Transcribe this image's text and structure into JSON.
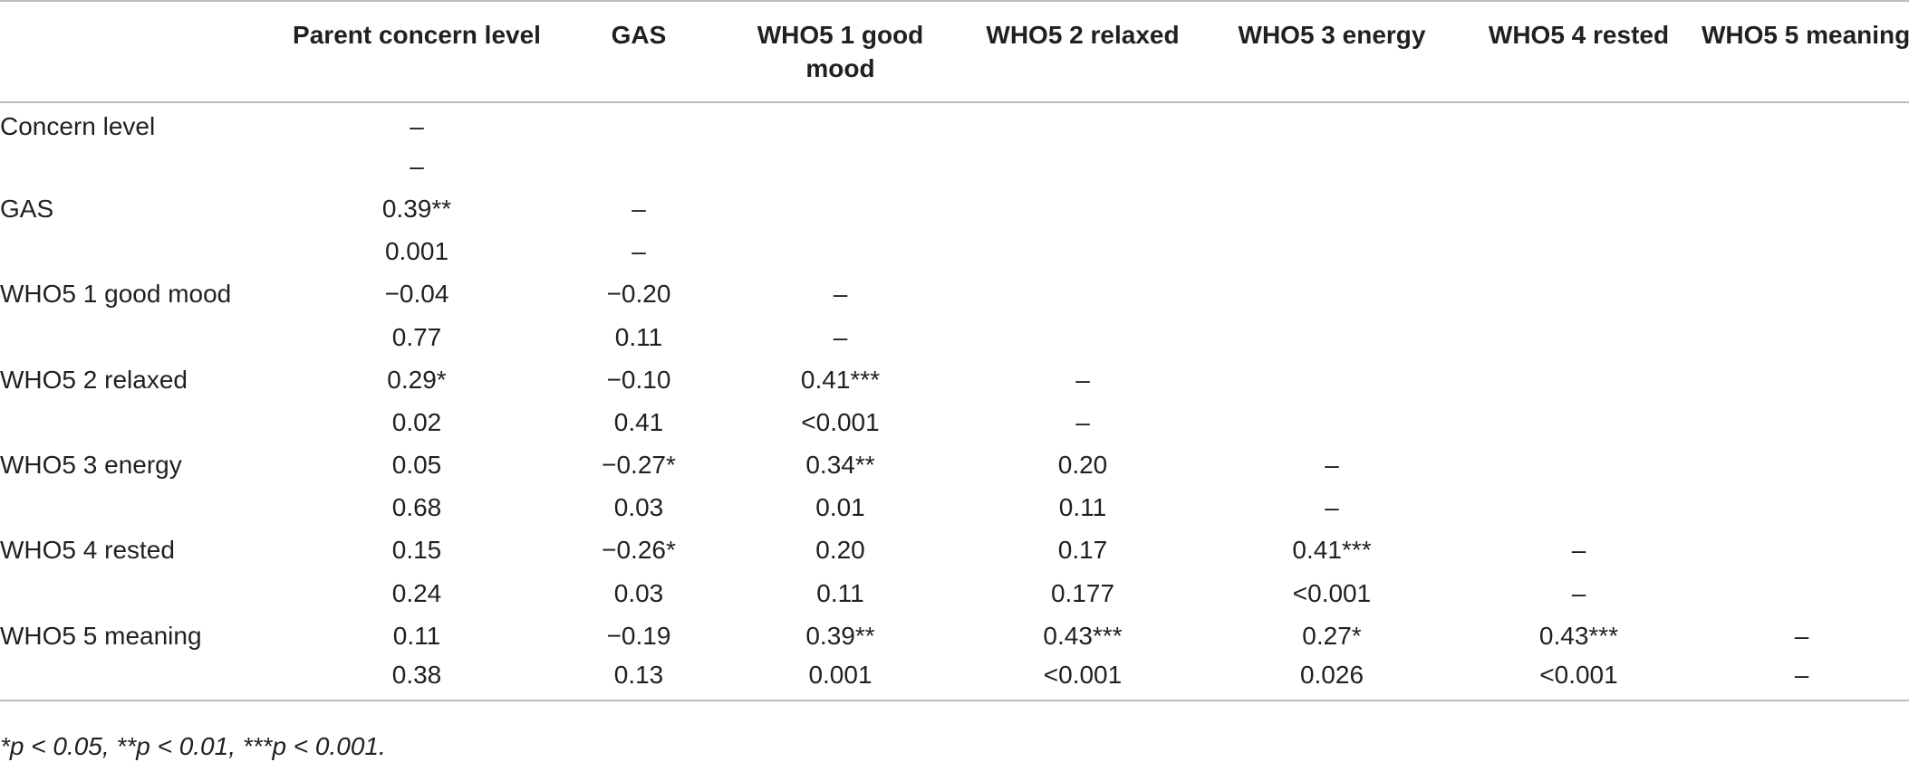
{
  "table": {
    "headers": [
      "",
      "Parent concern level",
      "GAS",
      "WHO5 1 good mood",
      "WHO5 2 relaxed",
      "WHO5 3 energy",
      "WHO5 4 rested",
      "WHO5 5 meaning"
    ],
    "rows": [
      [
        "Concern level",
        "–",
        "",
        "",
        "",
        "",
        "",
        ""
      ],
      [
        "",
        "–",
        "",
        "",
        "",
        "",
        "",
        ""
      ],
      [
        "GAS",
        "0.39**",
        "–",
        "",
        "",
        "",
        "",
        ""
      ],
      [
        "",
        "0.001",
        "–",
        "",
        "",
        "",
        "",
        ""
      ],
      [
        "WHO5 1 good mood",
        "−0.04",
        "−0.20",
        "–",
        "",
        "",
        "",
        ""
      ],
      [
        "",
        "0.77",
        "0.11",
        "–",
        "",
        "",
        "",
        ""
      ],
      [
        "WHO5 2 relaxed",
        "0.29*",
        "−0.10",
        "0.41***",
        "–",
        "",
        "",
        ""
      ],
      [
        "",
        "0.02",
        "0.41",
        "<0.001",
        "–",
        "",
        "",
        ""
      ],
      [
        "WHO5 3 energy",
        "0.05",
        "−0.27*",
        "0.34**",
        "0.20",
        "–",
        "",
        ""
      ],
      [
        "",
        "0.68",
        "0.03",
        "0.01",
        "0.11",
        "–",
        "",
        ""
      ],
      [
        "WHO5 4 rested",
        "0.15",
        "−0.26*",
        "0.20",
        "0.17",
        "0.41***",
        "–",
        ""
      ],
      [
        "",
        "0.24",
        "0.03",
        "0.11",
        "0.177",
        "<0.001",
        "–",
        ""
      ],
      [
        "WHO5 5 meaning",
        "0.11",
        "−0.19",
        "0.39**",
        "0.43***",
        "0.27*",
        "0.43***",
        "–"
      ],
      [
        "",
        "0.38",
        "0.13",
        "0.001",
        "<0.001",
        "0.026",
        "<0.001",
        "–"
      ]
    ]
  },
  "footnote": "*p < 0.05, **p < 0.01, ***p < 0.001."
}
